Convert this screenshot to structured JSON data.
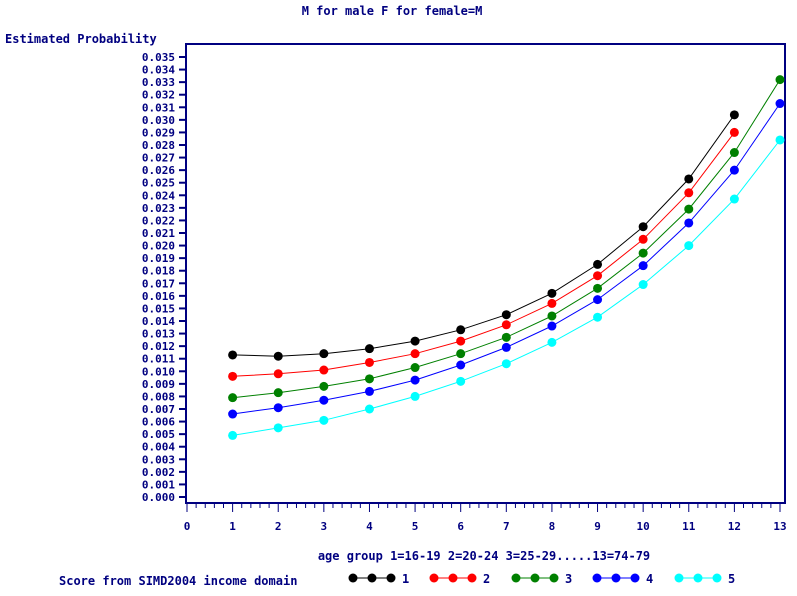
{
  "chart_data": {
    "type": "line",
    "title": "M for male F for female=M",
    "ylabel": "Estimated Probability",
    "xlabel": "age group 1=16-19 2=20-24 3=25-29.....13=74-79",
    "legend_title": "Score from SIMD2004 income domain",
    "legend_position": "bottom",
    "grid": false,
    "xlim": [
      0,
      13
    ],
    "ylim": [
      0,
      0.035
    ],
    "x_ticks": [
      0,
      1,
      2,
      3,
      4,
      5,
      6,
      7,
      8,
      9,
      10,
      11,
      12,
      13
    ],
    "y_ticks": [
      "0.000",
      "0.001",
      "0.002",
      "0.003",
      "0.004",
      "0.005",
      "0.006",
      "0.007",
      "0.008",
      "0.009",
      "0.010",
      "0.011",
      "0.012",
      "0.013",
      "0.014",
      "0.015",
      "0.016",
      "0.017",
      "0.018",
      "0.019",
      "0.020",
      "0.021",
      "0.022",
      "0.023",
      "0.024",
      "0.025",
      "0.026",
      "0.027",
      "0.028",
      "0.029",
      "0.030",
      "0.031",
      "0.032",
      "0.033",
      "0.034",
      "0.035"
    ],
    "series": [
      {
        "name": "1",
        "color": "#000000",
        "x": [
          1,
          2,
          3,
          4,
          5,
          6,
          7,
          8,
          9,
          10,
          11,
          12
        ],
        "values": [
          0.0113,
          0.0112,
          0.0114,
          0.0118,
          0.0124,
          0.0133,
          0.0145,
          0.0162,
          0.0185,
          0.0215,
          0.0253,
          0.0304
        ]
      },
      {
        "name": "2",
        "color": "#ff0000",
        "x": [
          1,
          2,
          3,
          4,
          5,
          6,
          7,
          8,
          9,
          10,
          11,
          12
        ],
        "values": [
          0.0096,
          0.0098,
          0.0101,
          0.0107,
          0.0114,
          0.0124,
          0.0137,
          0.0154,
          0.0176,
          0.0205,
          0.0242,
          0.029
        ]
      },
      {
        "name": "3",
        "color": "#008000",
        "x": [
          1,
          2,
          3,
          4,
          5,
          6,
          7,
          8,
          9,
          10,
          11,
          12,
          13
        ],
        "values": [
          0.0079,
          0.0083,
          0.0088,
          0.0094,
          0.0103,
          0.0114,
          0.0127,
          0.0144,
          0.0166,
          0.0194,
          0.0229,
          0.0274,
          0.0332
        ]
      },
      {
        "name": "4",
        "color": "#0000ff",
        "x": [
          1,
          2,
          3,
          4,
          5,
          6,
          7,
          8,
          9,
          10,
          11,
          12,
          13
        ],
        "values": [
          0.0066,
          0.0071,
          0.0077,
          0.0084,
          0.0093,
          0.0105,
          0.0119,
          0.0136,
          0.0157,
          0.0184,
          0.0218,
          0.026,
          0.0313
        ]
      },
      {
        "name": "5",
        "color": "#00ffff",
        "x": [
          1,
          2,
          3,
          4,
          5,
          6,
          7,
          8,
          9,
          10,
          11,
          12,
          13
        ],
        "values": [
          0.0049,
          0.0055,
          0.0061,
          0.007,
          0.008,
          0.0092,
          0.0106,
          0.0123,
          0.0143,
          0.0169,
          0.02,
          0.0237,
          0.0284
        ]
      }
    ]
  }
}
